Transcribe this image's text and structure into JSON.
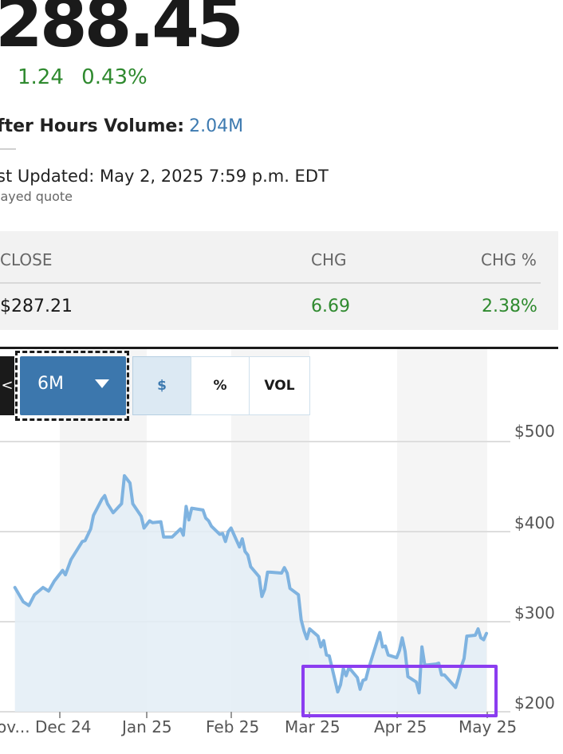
{
  "quote": {
    "price": "288.45",
    "change": "1.24",
    "change_pct": "0.43%",
    "after_hours_label": "fter Hours Volume:",
    "after_hours_value": "2.04M",
    "last_updated": "st Updated: May 2, 2025 7:59 p.m. EDT",
    "delayed_note": "layed quote"
  },
  "close_table": {
    "headers": [
      "CLOSE",
      "CHG",
      "CHG %"
    ],
    "row": [
      "$287.21",
      "6.69",
      "2.38%"
    ]
  },
  "chart_toolbar": {
    "left_stub_label": "<",
    "period_label": "6M",
    "mode_dollar": "$",
    "mode_pct": "%",
    "mode_vol": "VOL"
  },
  "chart_data": {
    "type": "area",
    "y_ticks": [
      "$500",
      "$400",
      "$300",
      "$200"
    ],
    "x_ticks": [
      "ov...",
      "Dec 24",
      "Jan 25",
      "Feb 25",
      "Mar 25",
      "Apr 25",
      "May 25"
    ],
    "ylim": [
      200,
      500
    ],
    "y_unit": "$",
    "points": [
      [
        "Nov 15",
        338
      ],
      [
        "Nov 18",
        322
      ],
      [
        "Nov 20",
        318
      ],
      [
        "Nov 22",
        330
      ],
      [
        "Nov 25",
        338
      ],
      [
        "Nov 27",
        334
      ],
      [
        "Nov 29",
        345
      ],
      [
        "Dec 2",
        357
      ],
      [
        "Dec 3",
        352
      ],
      [
        "Dec 5",
        369
      ],
      [
        "Dec 9",
        389
      ],
      [
        "Dec 10",
        390
      ],
      [
        "Dec 12",
        403
      ],
      [
        "Dec 13",
        418
      ],
      [
        "Dec 16",
        436
      ],
      [
        "Dec 17",
        440
      ],
      [
        "Dec 18",
        431
      ],
      [
        "Dec 20",
        421
      ],
      [
        "Dec 23",
        431
      ],
      [
        "Dec 24",
        462
      ],
      [
        "Dec 26",
        454
      ],
      [
        "Dec 27",
        431
      ],
      [
        "Dec 30",
        417
      ],
      [
        "Dec 31",
        404
      ],
      [
        "Jan 2",
        412
      ],
      [
        "Jan 3",
        410
      ],
      [
        "Jan 6",
        411
      ],
      [
        "Jan 7",
        394
      ],
      [
        "Jan 8",
        394
      ],
      [
        "Jan 10",
        394
      ],
      [
        "Jan 13",
        403
      ],
      [
        "Jan 14",
        396
      ],
      [
        "Jan 15",
        428
      ],
      [
        "Jan 16",
        413
      ],
      [
        "Jan 17",
        426
      ],
      [
        "Jan 21",
        424
      ],
      [
        "Jan 22",
        415
      ],
      [
        "Jan 23",
        412
      ],
      [
        "Jan 24",
        406
      ],
      [
        "Jan 27",
        397
      ],
      [
        "Jan 28",
        398
      ],
      [
        "Jan 29",
        389
      ],
      [
        "Jan 30",
        400
      ],
      [
        "Jan 31",
        404
      ],
      [
        "Feb 3",
        383
      ],
      [
        "Feb 4",
        392
      ],
      [
        "Feb 5",
        378
      ],
      [
        "Feb 6",
        374
      ],
      [
        "Feb 7",
        361
      ],
      [
        "Feb 10",
        350
      ],
      [
        "Feb 11",
        328
      ],
      [
        "Feb 12",
        336
      ],
      [
        "Feb 13",
        355
      ],
      [
        "Feb 14",
        355
      ],
      [
        "Feb 18",
        354
      ],
      [
        "Feb 19",
        360
      ],
      [
        "Feb 20",
        354
      ],
      [
        "Feb 21",
        337
      ],
      [
        "Feb 24",
        330
      ],
      [
        "Feb 25",
        302
      ],
      [
        "Feb 26",
        290
      ],
      [
        "Feb 27",
        281
      ],
      [
        "Feb 28",
        292
      ],
      [
        "Mar 3",
        284
      ],
      [
        "Mar 4",
        272
      ],
      [
        "Mar 5",
        279
      ],
      [
        "Mar 6",
        263
      ],
      [
        "Mar 7",
        262
      ],
      [
        "Mar 10",
        222
      ],
      [
        "Mar 11",
        230
      ],
      [
        "Mar 12",
        248
      ],
      [
        "Mar 13",
        240
      ],
      [
        "Mar 14",
        249
      ],
      [
        "Mar 17",
        238
      ],
      [
        "Mar 18",
        225
      ],
      [
        "Mar 19",
        235
      ],
      [
        "Mar 20",
        236
      ],
      [
        "Mar 21",
        248
      ],
      [
        "Mar 24",
        278
      ],
      [
        "Mar 25",
        288
      ],
      [
        "Mar 26",
        272
      ],
      [
        "Mar 27",
        273
      ],
      [
        "Mar 28",
        263
      ],
      [
        "Mar 31",
        260
      ],
      [
        "Apr 1",
        268
      ],
      [
        "Apr 2",
        282
      ],
      [
        "Apr 3",
        267
      ],
      [
        "Apr 4",
        239
      ],
      [
        "Apr 7",
        233
      ],
      [
        "Apr 8",
        221
      ],
      [
        "Apr 9",
        272
      ],
      [
        "Apr 10",
        252
      ],
      [
        "Apr 11",
        252
      ],
      [
        "Apr 14",
        253
      ],
      [
        "Apr 15",
        254
      ],
      [
        "Apr 16",
        241
      ],
      [
        "Apr 17",
        241
      ],
      [
        "Apr 21",
        227
      ],
      [
        "Apr 22",
        237
      ],
      [
        "Apr 23",
        250
      ],
      [
        "Apr 24",
        259
      ],
      [
        "Apr 25",
        284
      ],
      [
        "Apr 28",
        285
      ],
      [
        "Apr 29",
        292
      ],
      [
        "Apr 30",
        282
      ],
      [
        "May 1",
        280
      ],
      [
        "May 2",
        287
      ]
    ],
    "line_color": "#7fb3e0",
    "fill_color": "#e3edf6",
    "grid": true
  },
  "highlight_color": "#8b3df0"
}
